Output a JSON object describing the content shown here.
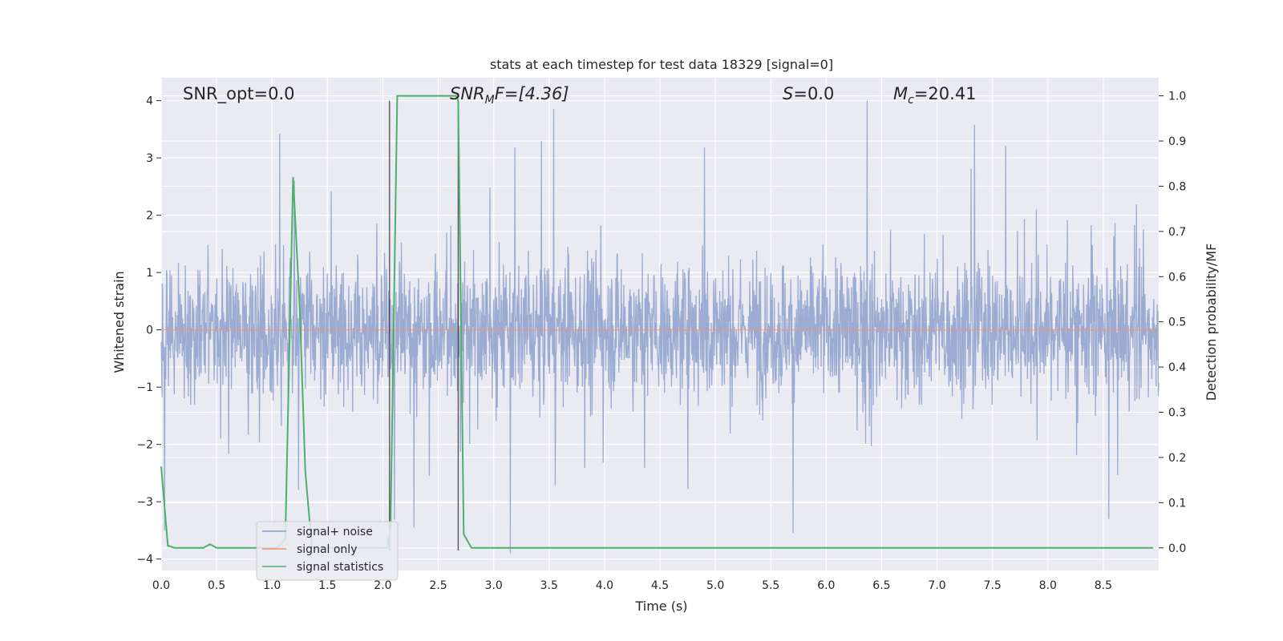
{
  "chart_data": {
    "type": "line",
    "title": "stats at each timestep for test data 18329 [signal=0]",
    "xlabel": "Time (s)",
    "ylabel_left": "Whitened strain",
    "ylabel_right": "Detection probability/MF",
    "xlim": [
      0.0,
      9.0
    ],
    "ylim_left": [
      -4.2,
      4.4
    ],
    "ylim_right": [
      -0.05,
      1.04
    ],
    "xticks": [
      "0.0",
      "0.5",
      "1.0",
      "1.5",
      "2.0",
      "2.5",
      "3.0",
      "3.5",
      "4.0",
      "4.5",
      "5.0",
      "5.5",
      "6.0",
      "6.5",
      "7.0",
      "7.5",
      "8.0",
      "8.5"
    ],
    "yticks_left": [
      "4",
      "3",
      "2",
      "1",
      "0",
      "−1",
      "−2",
      "−3",
      "−4"
    ],
    "yticks_right": [
      "1.0",
      "0.9",
      "0.8",
      "0.7",
      "0.6",
      "0.5",
      "0.4",
      "0.3",
      "0.2",
      "0.1",
      "0.0"
    ],
    "grid": true,
    "legend_position": "lower-left",
    "annotations": {
      "snr_opt": "SNR_opt=0.0",
      "snr_mf_var": "SNR",
      "snr_mf_sub": "M",
      "snr_mf_tail": "F=[4.36]",
      "s_var": "S",
      "s_tail": "=0.0",
      "mc_var": "M",
      "mc_sub": "c",
      "mc_tail": "=20.41"
    },
    "vlines_x": [
      2.06,
      2.68
    ],
    "series": [
      {
        "name": "signal+ noise",
        "color": "#8da0cb",
        "description_values": "dense noise, mostly within [-1.5, 1.6], peaks up to ~4.0 at 6.37s and down to ~-3.9 at 3.15s",
        "peaks": [
          {
            "x": 1.07,
            "y": 3.42
          },
          {
            "x": 1.2,
            "y": 2.6
          },
          {
            "x": 3.54,
            "y": 3.85
          },
          {
            "x": 4.9,
            "y": 3.18
          },
          {
            "x": 6.37,
            "y": 4.0
          },
          {
            "x": 7.34,
            "y": 3.58
          },
          {
            "x": 2.28,
            "y": -3.45
          },
          {
            "x": 3.15,
            "y": -3.9
          },
          {
            "x": 5.7,
            "y": -3.55
          },
          {
            "x": 8.55,
            "y": -3.3
          }
        ]
      },
      {
        "name": "signal only",
        "color": "#fc8d62",
        "values": "0 throughout"
      },
      {
        "name": "signal statistics",
        "color": "#4daf6a",
        "x": [
          0.0,
          0.06,
          0.12,
          0.2,
          0.3,
          0.38,
          0.44,
          0.5,
          0.6,
          0.8,
          1.0,
          1.05,
          1.12,
          1.19,
          1.25,
          1.3,
          1.36,
          1.5,
          2.0,
          2.04,
          2.07,
          2.13,
          2.3,
          2.5,
          2.66,
          2.68,
          2.73,
          2.8,
          3.0,
          4.0,
          5.0,
          6.0,
          7.0,
          8.0,
          8.95
        ],
        "y": [
          0.18,
          0.005,
          0.0,
          0.0,
          0.0,
          0.0,
          0.008,
          0.0,
          0.0,
          0.0,
          0.0,
          0.0,
          0.02,
          0.82,
          0.53,
          0.17,
          0.0,
          0.0,
          0.0,
          0.0,
          0.05,
          1.0,
          1.0,
          1.0,
          1.0,
          0.99,
          0.03,
          0.0,
          0.0,
          0.0,
          0.0,
          0.0,
          0.0,
          0.0,
          0.0
        ]
      }
    ]
  }
}
